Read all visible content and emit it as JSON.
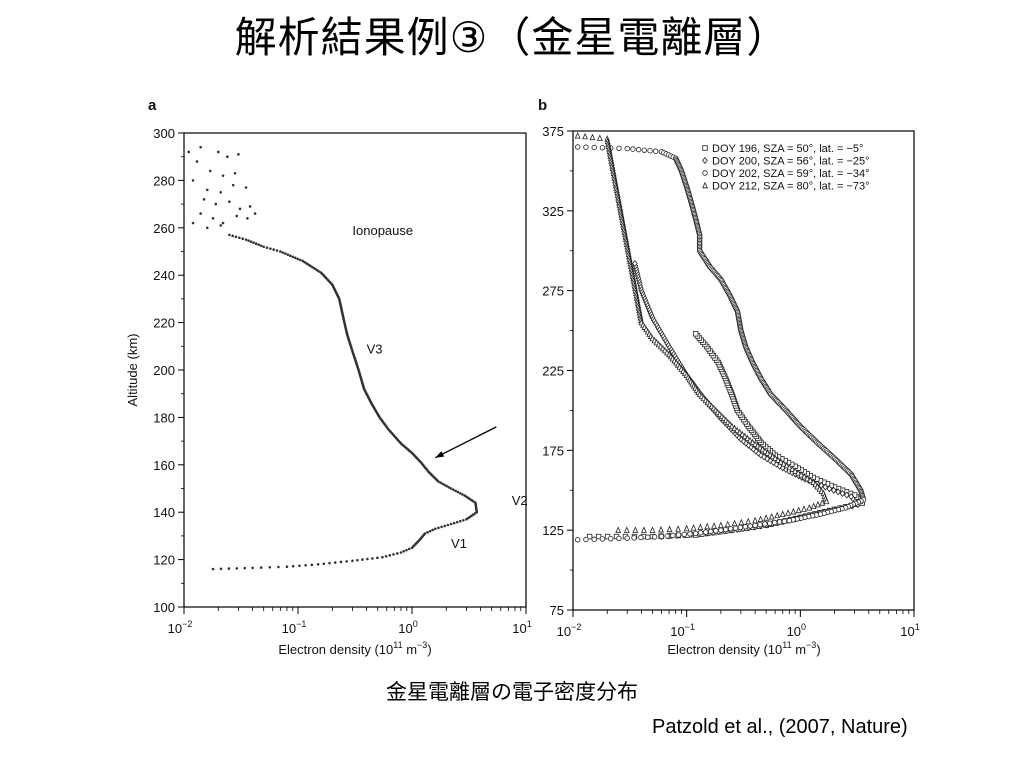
{
  "slide": {
    "title": "解析結果例③（金星電離層）",
    "caption": "金星電離層の電子密度分布",
    "citation": "Patzold et al., (2007, Nature)"
  },
  "chart_data": [
    {
      "type": "scatter",
      "panel_label": "a",
      "xlabel": "Electron density (10",
      "xlabel_sup1": "11",
      "xlabel_mid": " m",
      "xlabel_sup2": "−3",
      "xlabel_end": ")",
      "ylabel": "Altitude (km)",
      "xscale": "log",
      "xlim_exp": [
        -2,
        1
      ],
      "ylim": [
        100,
        300
      ],
      "xticks": [
        {
          "base": "10",
          "exp": "−2"
        },
        {
          "base": "10",
          "exp": "−1"
        },
        {
          "base": "10",
          "exp": "0"
        },
        {
          "base": "10",
          "exp": "1"
        }
      ],
      "yticks": [
        100,
        120,
        140,
        160,
        180,
        200,
        220,
        240,
        260,
        280,
        300
      ],
      "annotations": [
        {
          "text": "Ionopause",
          "x": 0.3,
          "y": 257
        },
        {
          "text": "V3",
          "x": 0.4,
          "y": 207
        },
        {
          "text": "V2",
          "x": 7.5,
          "y": 143
        },
        {
          "text": "V1",
          "x": 2.2,
          "y": 125
        }
      ],
      "arrow": {
        "from": [
          5.5,
          176
        ],
        "to": [
          1.6,
          163
        ]
      },
      "profile": [
        [
          0.018,
          116
        ],
        [
          0.04,
          116.5
        ],
        [
          0.08,
          117
        ],
        [
          0.15,
          118
        ],
        [
          0.3,
          119.5
        ],
        [
          0.55,
          121
        ],
        [
          0.8,
          123
        ],
        [
          1.0,
          125
        ],
        [
          1.15,
          128
        ],
        [
          1.3,
          131
        ],
        [
          1.6,
          133
        ],
        [
          2.2,
          135
        ],
        [
          3.0,
          137
        ],
        [
          3.7,
          140
        ],
        [
          3.6,
          144
        ],
        [
          2.9,
          147
        ],
        [
          2.2,
          150
        ],
        [
          1.7,
          153
        ],
        [
          1.4,
          157
        ],
        [
          1.2,
          161
        ],
        [
          1.0,
          165
        ],
        [
          0.8,
          169
        ],
        [
          0.62,
          175
        ],
        [
          0.52,
          180
        ],
        [
          0.44,
          186
        ],
        [
          0.38,
          192
        ],
        [
          0.34,
          200
        ],
        [
          0.3,
          208
        ],
        [
          0.27,
          215
        ],
        [
          0.25,
          222
        ],
        [
          0.23,
          230
        ],
        [
          0.2,
          236
        ],
        [
          0.16,
          241
        ],
        [
          0.11,
          246
        ],
        [
          0.07,
          250
        ],
        [
          0.05,
          252
        ],
        [
          0.035,
          255
        ],
        [
          0.025,
          257
        ]
      ],
      "scatter_top": [
        [
          0.011,
          292
        ],
        [
          0.014,
          294
        ],
        [
          0.02,
          292
        ],
        [
          0.024,
          290
        ],
        [
          0.03,
          291
        ],
        [
          0.013,
          288
        ],
        [
          0.017,
          284
        ],
        [
          0.022,
          282
        ],
        [
          0.028,
          283
        ],
        [
          0.012,
          280
        ],
        [
          0.016,
          276
        ],
        [
          0.021,
          275
        ],
        [
          0.027,
          278
        ],
        [
          0.035,
          277
        ],
        [
          0.015,
          272
        ],
        [
          0.019,
          270
        ],
        [
          0.025,
          271
        ],
        [
          0.031,
          268
        ],
        [
          0.038,
          269
        ],
        [
          0.014,
          266
        ],
        [
          0.018,
          264
        ],
        [
          0.022,
          262
        ],
        [
          0.029,
          265
        ],
        [
          0.036,
          264
        ],
        [
          0.042,
          266
        ],
        [
          0.012,
          262
        ],
        [
          0.016,
          260
        ],
        [
          0.021,
          261
        ]
      ]
    },
    {
      "type": "scatter",
      "panel_label": "b",
      "xlabel": "Electron density (10",
      "xlabel_sup1": "11",
      "xlabel_mid": " m",
      "xlabel_sup2": "−3",
      "xlabel_end": ")",
      "xscale": "log",
      "xlim_exp": [
        -2,
        1
      ],
      "ylim": [
        75,
        375
      ],
      "xticks": [
        {
          "base": "10",
          "exp": "−2"
        },
        {
          "base": "10",
          "exp": "−1"
        },
        {
          "base": "10",
          "exp": "0"
        },
        {
          "base": "10",
          "exp": "1"
        }
      ],
      "yticks": [
        75,
        125,
        175,
        225,
        275,
        325,
        375
      ],
      "legend_position": "top-right",
      "series": [
        {
          "name": "DOY 196, SZA = 50°, lat. = −5°",
          "marker": "square",
          "points": [
            [
              0.014,
              121
            ],
            [
              0.05,
              121
            ],
            [
              0.12,
              122
            ],
            [
              0.25,
              125
            ],
            [
              0.5,
              128
            ],
            [
              1.0,
              133
            ],
            [
              2.0,
              138
            ],
            [
              3.5,
              142
            ],
            [
              3.0,
              147
            ],
            [
              2.0,
              152
            ],
            [
              1.3,
              158
            ],
            [
              0.9,
              165
            ],
            [
              0.6,
              172
            ],
            [
              0.45,
              180
            ],
            [
              0.35,
              190
            ],
            [
              0.28,
              200
            ],
            [
              0.25,
              210
            ],
            [
              0.22,
              220
            ],
            [
              0.19,
              230
            ],
            [
              0.15,
              240
            ],
            [
              0.12,
              248
            ]
          ]
        },
        {
          "name": "DOY 200, SZA = 56°, lat. = −25°",
          "marker": "diamond",
          "points": [
            [
              0.06,
              121
            ],
            [
              0.15,
              123
            ],
            [
              0.4,
              127
            ],
            [
              0.9,
              132
            ],
            [
              1.8,
              137
            ],
            [
              3.2,
              141
            ],
            [
              2.8,
              146
            ],
            [
              1.8,
              151
            ],
            [
              1.1,
              157
            ],
            [
              0.7,
              164
            ],
            [
              0.45,
              172
            ],
            [
              0.3,
              182
            ],
            [
              0.2,
              195
            ],
            [
              0.14,
              208
            ],
            [
              0.1,
              222
            ],
            [
              0.07,
              240
            ],
            [
              0.05,
              258
            ],
            [
              0.04,
              275
            ],
            [
              0.035,
              292
            ]
          ]
        },
        {
          "name": "DOY 202, SZA = 59°, lat. = −34°",
          "marker": "circle",
          "points": [
            [
              0.011,
              365
            ],
            [
              0.03,
              364
            ],
            [
              0.06,
              362
            ],
            [
              0.08,
              358
            ],
            [
              0.09,
              350
            ],
            [
              0.1,
              340
            ],
            [
              0.11,
              330
            ],
            [
              0.12,
              320
            ],
            [
              0.13,
              310
            ],
            [
              0.13,
              300
            ],
            [
              0.16,
              290
            ],
            [
              0.2,
              282
            ],
            [
              0.24,
              272
            ],
            [
              0.28,
              262
            ],
            [
              0.3,
              250
            ],
            [
              0.33,
              240
            ],
            [
              0.38,
              230
            ],
            [
              0.45,
              220
            ],
            [
              0.55,
              210
            ],
            [
              0.75,
              200
            ],
            [
              1.0,
              190
            ],
            [
              1.4,
              180
            ],
            [
              2.0,
              170
            ],
            [
              2.8,
              160
            ],
            [
              3.4,
              150
            ],
            [
              3.6,
              144
            ],
            [
              2.5,
              139
            ],
            [
              1.5,
              135
            ],
            [
              0.8,
              131
            ],
            [
              0.4,
              128
            ],
            [
              0.2,
              125
            ],
            [
              0.12,
              123
            ],
            [
              0.06,
              121
            ],
            [
              0.03,
              120
            ],
            [
              0.011,
              119
            ]
          ]
        },
        {
          "name": "DOY 212, SZA = 80°, lat. = −73°",
          "marker": "triangle",
          "points": [
            [
              0.011,
              372
            ],
            [
              0.02,
              370
            ],
            [
              0.04,
              255
            ],
            [
              0.05,
              245
            ],
            [
              0.07,
              235
            ],
            [
              0.1,
              222
            ],
            [
              0.13,
              210
            ],
            [
              0.18,
              200
            ],
            [
              0.25,
              190
            ],
            [
              0.38,
              180
            ],
            [
              0.6,
              170
            ],
            [
              0.9,
              162
            ],
            [
              1.3,
              155
            ],
            [
              1.6,
              148
            ],
            [
              1.7,
              143
            ],
            [
              1.2,
              139
            ],
            [
              0.7,
              135
            ],
            [
              0.4,
              131
            ],
            [
              0.2,
              128
            ],
            [
              0.1,
              126
            ],
            [
              0.05,
              125
            ],
            [
              0.025,
              125
            ]
          ]
        }
      ]
    }
  ]
}
